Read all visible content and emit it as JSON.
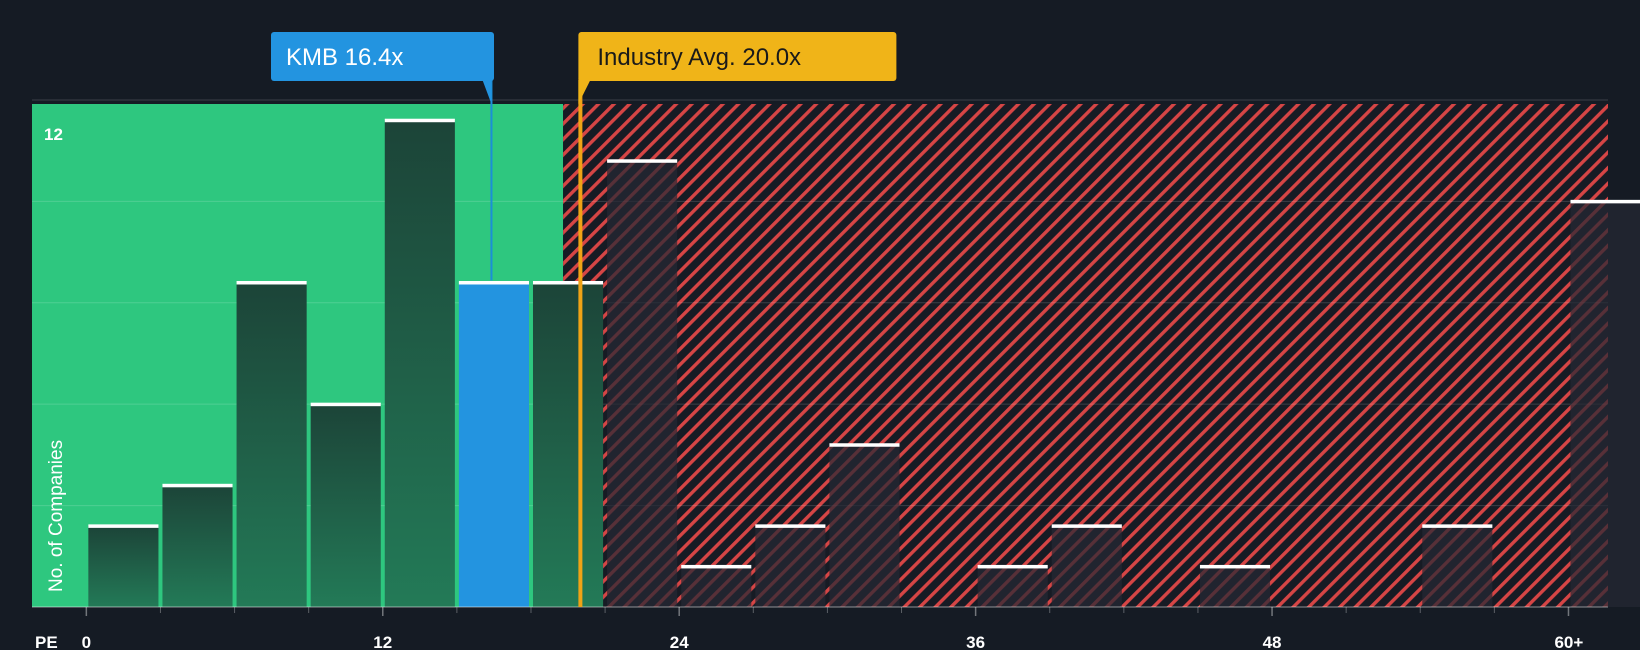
{
  "chart_data": {
    "type": "bar",
    "title": "",
    "xlabel": "PE",
    "ylabel": "No. of Companies",
    "x_ticks": [
      "0",
      "12",
      "24",
      "36",
      "48",
      "60+"
    ],
    "y_ticks": [
      "12"
    ],
    "bin_width": 3,
    "bins": [
      {
        "start": 0,
        "count": 2
      },
      {
        "start": 3,
        "count": 3
      },
      {
        "start": 6,
        "count": 8
      },
      {
        "start": 9,
        "count": 5
      },
      {
        "start": 12,
        "count": 12
      },
      {
        "start": 15,
        "count": 8,
        "highlight": true
      },
      {
        "start": 18,
        "count": 8
      },
      {
        "start": 21,
        "count": 11
      },
      {
        "start": 24,
        "count": 1
      },
      {
        "start": 27,
        "count": 2
      },
      {
        "start": 30,
        "count": 4
      },
      {
        "start": 33,
        "count": 0
      },
      {
        "start": 36,
        "count": 1
      },
      {
        "start": 39,
        "count": 2
      },
      {
        "start": 42,
        "count": 0
      },
      {
        "start": 45,
        "count": 1
      },
      {
        "start": 48,
        "count": 0
      },
      {
        "start": 51,
        "count": 0
      },
      {
        "start": 54,
        "count": 2
      },
      {
        "start": 57,
        "count": 0
      },
      {
        "start": 60,
        "count": 10
      }
    ],
    "company": {
      "label": "KMB 16.4x",
      "pe": 16.4
    },
    "industry_avg": {
      "label": "Industry Avg. 20.0x",
      "pe": 20.0
    },
    "ylim": [
      0,
      12.4
    ],
    "xlim": [
      -2.2,
      61.6
    ],
    "fair_range_end": 19.3,
    "colors": {
      "background": "#151b24",
      "fair_zone": "#2ec77f",
      "bar": "#1e4a3c",
      "bar_bottom": "#237a57",
      "highlight_bar": "#2394e0",
      "overvalued_stripe": "#d64545",
      "overvalued_bar": "#262833",
      "company_callout": "#2394e0",
      "industry_callout": "#f0b418",
      "industry_line": "#f0a316",
      "cap": "#ffffff"
    }
  }
}
